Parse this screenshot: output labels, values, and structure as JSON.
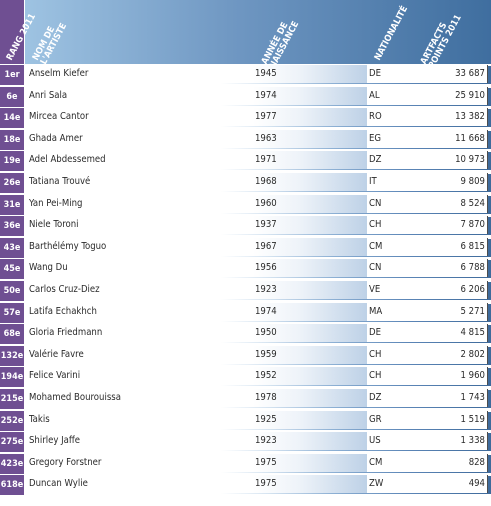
{
  "headers": {
    "rank": "RANG 2011",
    "name": "NOM DE\nL'ARTISTE",
    "year": "ANNÉE DE\nNAISSANCE",
    "nationality": "NATIONALITÉ",
    "points": "ARTFACTS\nPOINTS 2011"
  },
  "rows": [
    {
      "rank": "1er",
      "name": "Anselm Kiefer",
      "year": "1945",
      "nat": "DE",
      "pts": "33 687"
    },
    {
      "rank": "6e",
      "name": "Anri Sala",
      "year": "1974",
      "nat": "AL",
      "pts": "25 910"
    },
    {
      "rank": "14e",
      "name": "Mircea Cantor",
      "year": "1977",
      "nat": "RO",
      "pts": "13 382"
    },
    {
      "rank": "18e",
      "name": "Ghada Amer",
      "year": "1963",
      "nat": "EG",
      "pts": "11 668"
    },
    {
      "rank": "19e",
      "name": "Adel Abdessemed",
      "year": "1971",
      "nat": "DZ",
      "pts": "10 973"
    },
    {
      "rank": "26e",
      "name": "Tatiana Trouvé",
      "year": "1968",
      "nat": "IT",
      "pts": "9 809"
    },
    {
      "rank": "31e",
      "name": "Yan Pei-Ming",
      "year": "1960",
      "nat": "CN",
      "pts": "8 524"
    },
    {
      "rank": "36e",
      "name": "Niele Toroni",
      "year": "1937",
      "nat": "CH",
      "pts": "7 870"
    },
    {
      "rank": "43e",
      "name": "Barthélémy Toguo",
      "year": "1967",
      "nat": "CM",
      "pts": "6 815"
    },
    {
      "rank": "45e",
      "name": "Wang Du",
      "year": "1956",
      "nat": "CN",
      "pts": "6 788"
    },
    {
      "rank": "50e",
      "name": "Carlos Cruz-Diez",
      "year": "1923",
      "nat": "VE",
      "pts": "6 206"
    },
    {
      "rank": "57e",
      "name": "Latifa Echakhch",
      "year": "1974",
      "nat": "MA",
      "pts": "5 271"
    },
    {
      "rank": "68e",
      "name": "Gloria Friedmann",
      "year": "1950",
      "nat": "DE",
      "pts": "4 815"
    },
    {
      "rank": "132e",
      "name": "Valérie Favre",
      "year": "1959",
      "nat": "CH",
      "pts": "2 802"
    },
    {
      "rank": "194e",
      "name": "Felice Varini",
      "year": "1952",
      "nat": "CH",
      "pts": "1 960"
    },
    {
      "rank": "215e",
      "name": "Mohamed Bourouissa",
      "year": "1978",
      "nat": "DZ",
      "pts": "1 743"
    },
    {
      "rank": "252e",
      "name": "Takis",
      "year": "1925",
      "nat": "GR",
      "pts": "1 519"
    },
    {
      "rank": "275e",
      "name": "Shirley Jaffe",
      "year": "1923",
      "nat": "US",
      "pts": "1 338"
    },
    {
      "rank": "423e",
      "name": "Gregory Forstner",
      "year": "1975",
      "nat": "CM",
      "pts": "828"
    },
    {
      "rank": "618e",
      "name": "Duncan Wylie",
      "year": "1975",
      "nat": "ZW",
      "pts": "494"
    }
  ]
}
